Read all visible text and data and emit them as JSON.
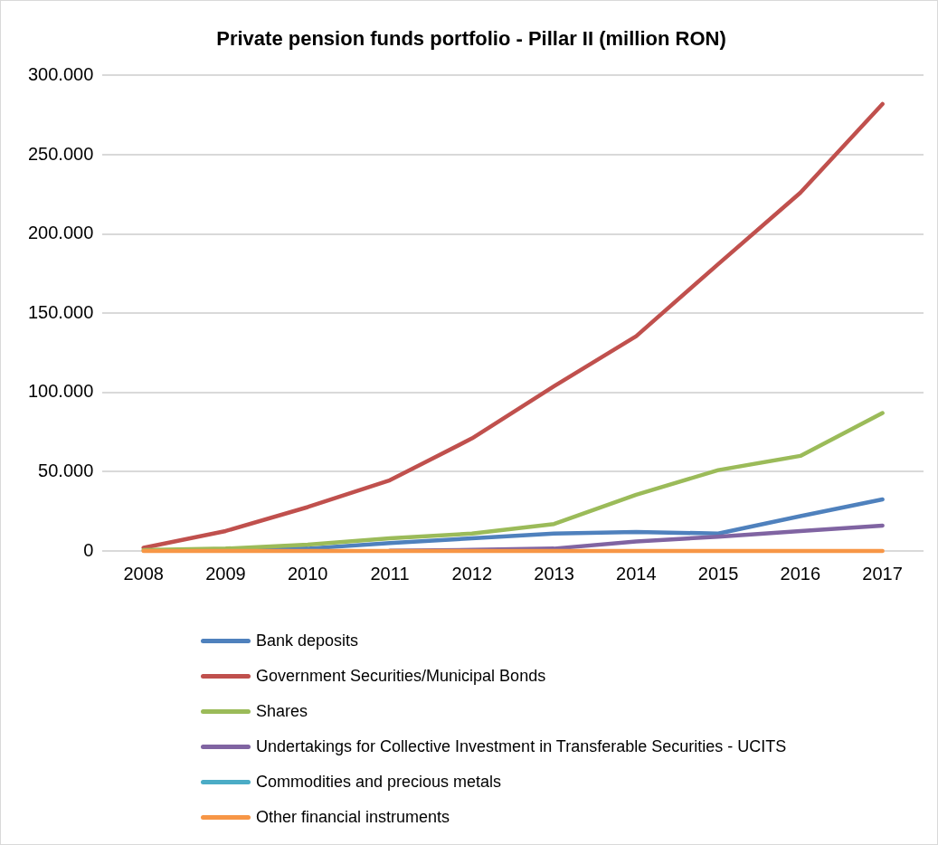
{
  "chart_data": {
    "type": "line",
    "title": "Private pension funds portfolio - Pillar II (million RON)",
    "categories": [
      "2008",
      "2009",
      "2010",
      "2011",
      "2012",
      "2013",
      "2014",
      "2015",
      "2016",
      "2017"
    ],
    "series": [
      {
        "name": "Bank deposits",
        "color": "#4f81bd",
        "values": [
          null,
          800,
          1500,
          5000,
          8000,
          11000,
          12000,
          11000,
          22000,
          32500
        ]
      },
      {
        "name": "Government Securities/Municipal Bonds",
        "color": "#c0504d",
        "values": [
          2000,
          12600,
          27700,
          44600,
          71000,
          104000,
          135500,
          181000,
          226000,
          282000
        ]
      },
      {
        "name": "Shares",
        "color": "#9bbb59",
        "values": [
          500,
          1500,
          4000,
          8000,
          11000,
          17000,
          35500,
          51000,
          60000,
          87000
        ]
      },
      {
        "name": "Undertakings for Collective Investment in Transferable Securities - UCITS",
        "color": "#8064a2",
        "values": [
          null,
          null,
          null,
          200,
          700,
          1500,
          6000,
          9000,
          12500,
          16000
        ]
      },
      {
        "name": "Commodities and precious metals",
        "color": "#4bacc6",
        "values": [
          null,
          null,
          null,
          null,
          null,
          null,
          null,
          null,
          null,
          null
        ]
      },
      {
        "name": "Other financial instruments",
        "color": "#f79646",
        "values": [
          0,
          0,
          0,
          0,
          0,
          0,
          0,
          0,
          0,
          0
        ]
      }
    ],
    "ylim": [
      0,
      300000
    ],
    "yticks": [
      {
        "value": 0,
        "label": "0"
      },
      {
        "value": 50000,
        "label": "50.000"
      },
      {
        "value": 100000,
        "label": "100.000"
      },
      {
        "value": 150000,
        "label": "150.000"
      },
      {
        "value": 200000,
        "label": "200.000"
      },
      {
        "value": 250000,
        "label": "250.000"
      },
      {
        "value": 300000,
        "label": "300.000"
      }
    ],
    "grid": "y",
    "legend": "bottom",
    "marker": "none",
    "line_style": "solid"
  }
}
